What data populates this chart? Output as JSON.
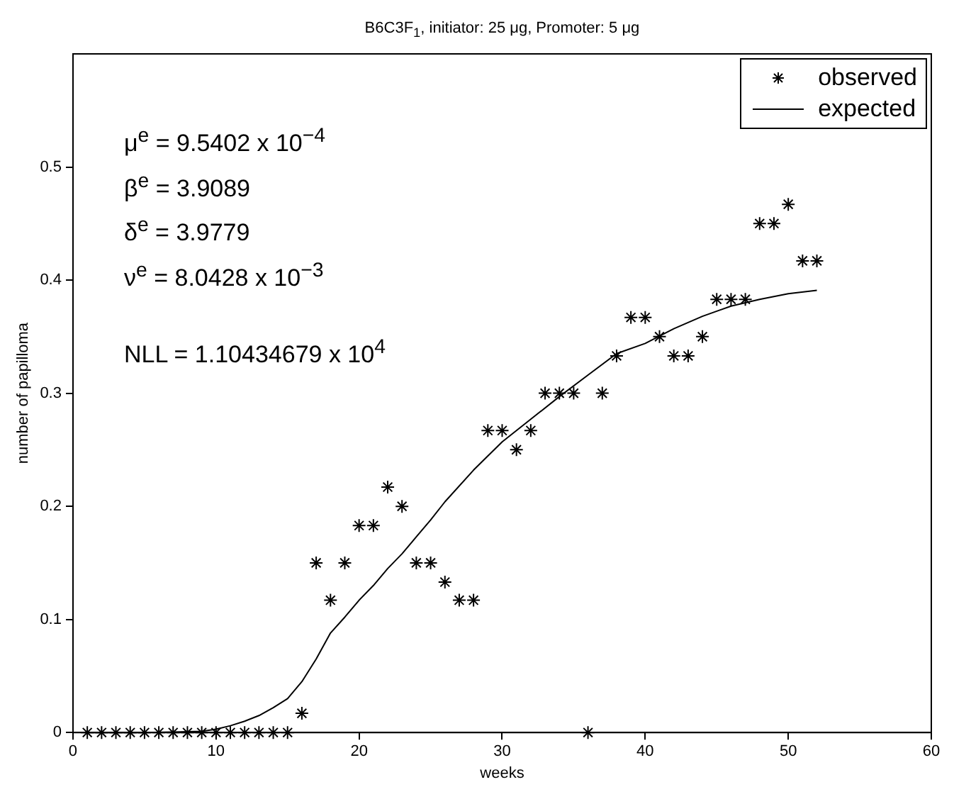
{
  "chart_data": {
    "type": "scatter",
    "title": "B6C3F$_{1}$, initiator: 25 μg, Promoter: 5 μg",
    "xlabel": "weeks",
    "ylabel": "number of papilloma",
    "xlim": [
      0,
      60
    ],
    "xticks": [
      0,
      10,
      20,
      30,
      40,
      50,
      60
    ],
    "ylim": [
      0,
      0.6
    ],
    "yticks": [
      0,
      0.1,
      0.2,
      0.3,
      0.4,
      0.5
    ],
    "grid": false,
    "legend": "top right",
    "annotations": [
      "μ$^{e}$ = 9.5402 x 10$^{−4}$",
      "β$^{e}$ = 3.9089",
      "δ$^{e}$ = 3.9779",
      "ν$^{e}$ = 8.0428 x 10$^{−3}$",
      "NLL = 1.10434679 x 10$^{4}$"
    ],
    "series": [
      {
        "name": "observed",
        "type": "scatter",
        "marker": "cross",
        "color": "#000000",
        "x": [
          1,
          2,
          3,
          4,
          5,
          6,
          7,
          8,
          9,
          10,
          11,
          12,
          13,
          14,
          15,
          16,
          17,
          18,
          19,
          20,
          21,
          22,
          23,
          24,
          25,
          26,
          27,
          28,
          29,
          30,
          31,
          32,
          33,
          34,
          35,
          36,
          37,
          38,
          39,
          40,
          41,
          42,
          43,
          44,
          45,
          46,
          47,
          48,
          49,
          50,
          51,
          52
        ],
        "values": [
          0,
          0,
          0,
          0,
          0,
          0,
          0,
          0,
          0,
          0,
          0,
          0,
          0,
          0,
          0,
          0.017,
          0.15,
          0.117,
          0.15,
          0.183,
          0.183,
          0.217,
          0.2,
          0.15,
          0.15,
          0.133,
          0.117,
          0.117,
          0.267,
          0.267,
          0.25,
          0.267,
          0.3,
          0.3,
          0.3,
          0,
          0.3,
          0.333,
          0.367,
          0.367,
          0.35,
          0.333,
          0.333,
          0.35,
          0.383,
          0.383,
          0.383,
          0.45,
          0.45,
          0.467,
          0.417,
          0.417
        ]
      },
      {
        "name": "expected",
        "type": "line",
        "marker": "none",
        "color": "#000000",
        "line_style": "solid",
        "x": [
          1,
          5,
          9,
          10,
          11,
          12,
          13,
          14,
          15,
          16,
          17,
          18,
          19,
          20,
          21,
          22,
          23,
          24,
          25,
          26,
          28,
          30,
          32,
          34,
          36,
          38,
          40,
          42,
          44,
          46,
          48,
          50,
          52
        ],
        "values": [
          0,
          0,
          0.001,
          0.003,
          0.006,
          0.01,
          0.015,
          0.022,
          0.03,
          0.045,
          0.065,
          0.088,
          0.102,
          0.117,
          0.13,
          0.145,
          0.158,
          0.173,
          0.188,
          0.204,
          0.232,
          0.257,
          0.277,
          0.297,
          0.316,
          0.335,
          0.344,
          0.357,
          0.368,
          0.377,
          0.383,
          0.388,
          0.391
        ]
      }
    ]
  }
}
